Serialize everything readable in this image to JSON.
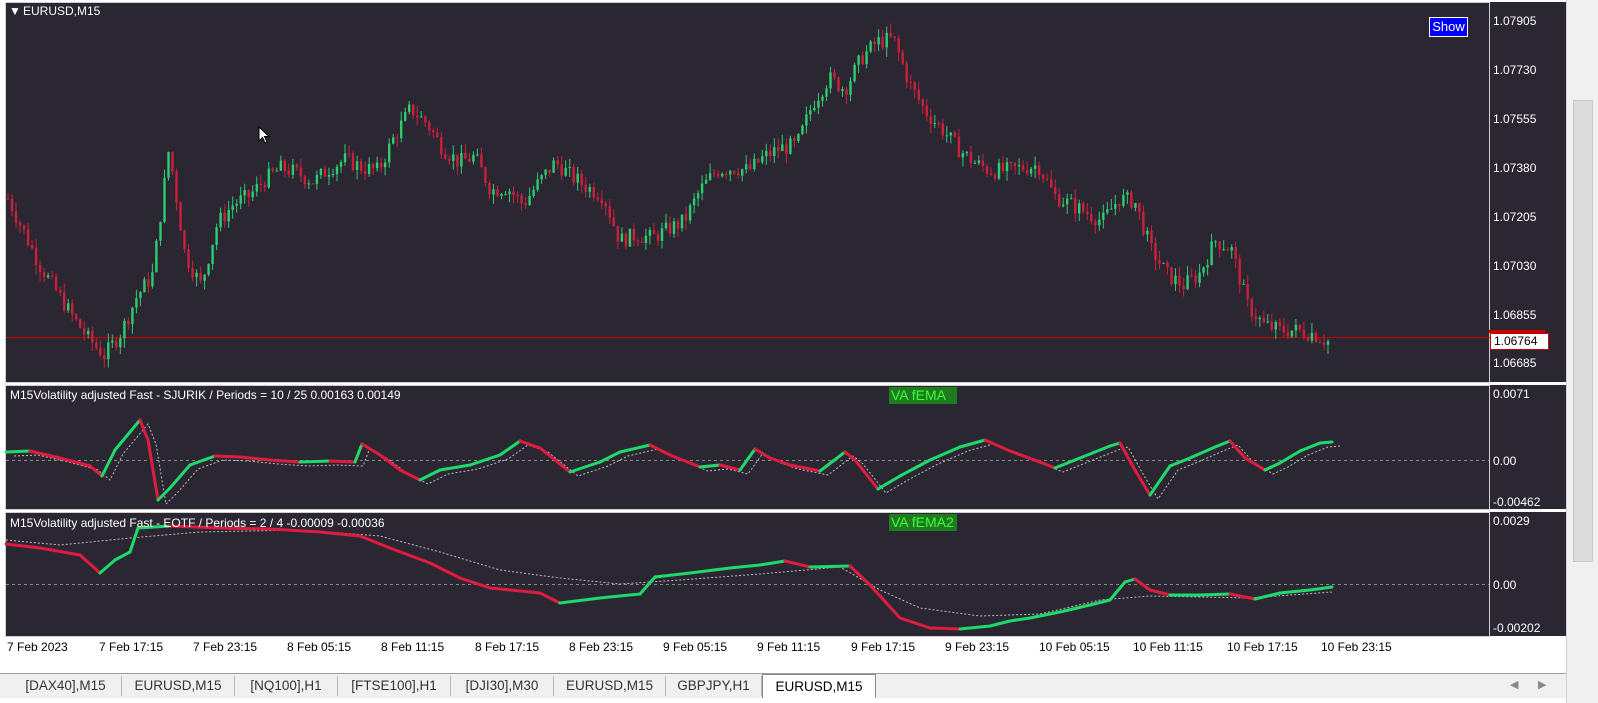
{
  "main_panel": {
    "symbol_title": "EURUSD,M15",
    "show_button": "Show",
    "current_price": "1.06764",
    "y_ticks": [
      "1.07905",
      "1.07730",
      "1.07555",
      "1.07380",
      "1.07205",
      "1.07030",
      "1.06855",
      "1.06685"
    ]
  },
  "indicator1": {
    "title": "M15Volatility adjusted Fast -  SJURIK / Periods = 10 / 25  0.00163 0.00149",
    "label_box": "VA fEMA",
    "y_ticks": [
      "0.0071",
      "0.00",
      "-0.00462"
    ]
  },
  "indicator2": {
    "title": "M15Volatility adjusted Fast - EOTF / Periods = 2 / 4  -0.00009 -0.00036",
    "label_box": "VA fEMA2",
    "y_ticks": [
      "0.0029",
      "0.00",
      "-0.00202"
    ]
  },
  "x_axis": {
    "ticks": [
      "7 Feb 2023",
      "7 Feb 17:15",
      "7 Feb 23:15",
      "8 Feb 05:15",
      "8 Feb 11:15",
      "8 Feb 17:15",
      "8 Feb 23:15",
      "9 Feb 05:15",
      "9 Feb 11:15",
      "9 Feb 17:15",
      "9 Feb 23:15",
      "10 Feb 05:15",
      "10 Feb 11:15",
      "10 Feb 17:15",
      "10 Feb 23:15"
    ]
  },
  "tabs": [
    {
      "label": "[DAX40],M15",
      "active": false
    },
    {
      "label": "EURUSD,M15",
      "active": false
    },
    {
      "label": "[NQ100],H1",
      "active": false
    },
    {
      "label": "[FTSE100],H1",
      "active": false
    },
    {
      "label": "[DJI30],M30",
      "active": false
    },
    {
      "label": "EURUSD,M15",
      "active": false
    },
    {
      "label": "GBPJPY,H1",
      "active": false
    },
    {
      "label": "EURUSD,M15",
      "active": true
    }
  ],
  "colors": {
    "background": "#2a2733",
    "bull": "#2ecc71",
    "bear": "#cc1f3a",
    "price_line": "#cc0000",
    "indicator_up": "#1fd96a",
    "indicator_down": "#e01b40"
  },
  "chart_data": {
    "type": "candlestick",
    "title": "EURUSD,M15",
    "ylim": [
      1.0663,
      1.0795
    ],
    "close_path": [
      1.0727,
      1.0715,
      1.0703,
      1.0694,
      1.0685,
      1.0677,
      1.0671,
      1.0679,
      1.0692,
      1.07,
      1.0745,
      1.0707,
      1.0696,
      1.0718,
      1.0725,
      1.0728,
      1.0734,
      1.0738,
      1.0736,
      1.0733,
      1.0738,
      1.0741,
      1.0738,
      1.0737,
      1.0749,
      1.0759,
      1.0754,
      1.0745,
      1.074,
      1.0742,
      1.073,
      1.0731,
      1.0725,
      1.0733,
      1.074,
      1.0735,
      1.0731,
      1.0728,
      1.0712,
      1.0714,
      1.0713,
      1.0716,
      1.0719,
      1.073,
      1.0737,
      1.0738,
      1.0737,
      1.0742,
      1.0745,
      1.0746,
      1.0761,
      1.077,
      1.0766,
      1.0777,
      1.0783,
      1.0784,
      1.0768,
      1.0758,
      1.0752,
      1.0745,
      1.074,
      1.0737,
      1.0737,
      1.0738,
      1.0739,
      1.0728,
      1.0725,
      1.0722,
      1.0719,
      1.0727,
      1.0726,
      1.0709,
      1.07,
      1.0696,
      1.07,
      1.0712,
      1.0709,
      1.0689,
      1.0682,
      1.068,
      1.068,
      1.0679,
      1.0676
    ]
  }
}
